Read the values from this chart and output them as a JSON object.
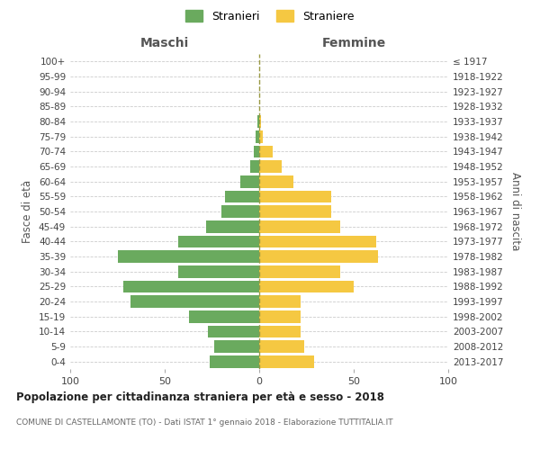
{
  "age_groups": [
    "0-4",
    "5-9",
    "10-14",
    "15-19",
    "20-24",
    "25-29",
    "30-34",
    "35-39",
    "40-44",
    "45-49",
    "50-54",
    "55-59",
    "60-64",
    "65-69",
    "70-74",
    "75-79",
    "80-84",
    "85-89",
    "90-94",
    "95-99",
    "100+"
  ],
  "birth_years": [
    "2013-2017",
    "2008-2012",
    "2003-2007",
    "1998-2002",
    "1993-1997",
    "1988-1992",
    "1983-1987",
    "1978-1982",
    "1973-1977",
    "1968-1972",
    "1963-1967",
    "1958-1962",
    "1953-1957",
    "1948-1952",
    "1943-1947",
    "1938-1942",
    "1933-1937",
    "1928-1932",
    "1923-1927",
    "1918-1922",
    "≤ 1917"
  ],
  "maschi": [
    26,
    24,
    27,
    37,
    68,
    72,
    43,
    75,
    43,
    28,
    20,
    18,
    10,
    5,
    3,
    2,
    1,
    0,
    0,
    0,
    0
  ],
  "femmine": [
    29,
    24,
    22,
    22,
    22,
    50,
    43,
    63,
    62,
    43,
    38,
    38,
    18,
    12,
    7,
    2,
    1,
    0,
    0,
    0,
    0
  ],
  "male_color": "#6aaa5e",
  "female_color": "#f5c842",
  "background_color": "#ffffff",
  "grid_color": "#cccccc",
  "title": "Popolazione per cittadinanza straniera per età e sesso - 2018",
  "subtitle": "COMUNE DI CASTELLAMONTE (TO) - Dati ISTAT 1° gennaio 2018 - Elaborazione TUTTITALIA.IT",
  "xlabel_left": "Maschi",
  "xlabel_right": "Femmine",
  "ylabel_left": "Fasce di età",
  "ylabel_right": "Anni di nascita",
  "legend_male": "Stranieri",
  "legend_female": "Straniere",
  "xlim": 100,
  "bar_height": 0.82
}
